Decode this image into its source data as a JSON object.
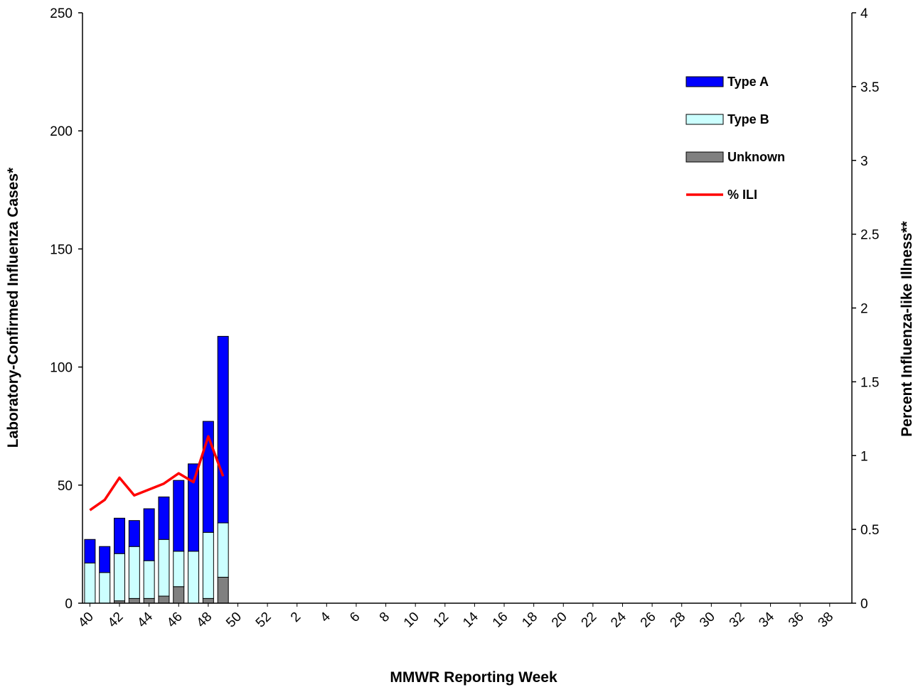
{
  "chart_data": {
    "type": "bar",
    "stacked": true,
    "xlabel": "MMWR Reporting Week",
    "ylabel": "Laboratory-Confirmed Influenza Cases*",
    "y2label": "Percent Influenza-like Illness**",
    "ylim": [
      0,
      250
    ],
    "y2lim": [
      0,
      4
    ],
    "yticks": [
      "0",
      "50",
      "100",
      "150",
      "200",
      "250"
    ],
    "y2ticks": [
      "0",
      "0.5",
      "1",
      "1.5",
      "2",
      "2.5",
      "3",
      "3.5",
      "4"
    ],
    "weeks": [
      "40",
      "41",
      "42",
      "43",
      "44",
      "45",
      "46",
      "47",
      "48",
      "49",
      "50",
      "51",
      "52",
      "1",
      "2",
      "3",
      "4",
      "5",
      "6",
      "7",
      "8",
      "9",
      "10",
      "11",
      "12",
      "13",
      "14",
      "15",
      "16",
      "17",
      "18",
      "19",
      "20",
      "21",
      "22",
      "23",
      "24",
      "25",
      "26",
      "27",
      "28",
      "29",
      "30",
      "31",
      "32",
      "33",
      "34",
      "35",
      "36",
      "37",
      "38",
      "39"
    ],
    "xtick_labels": [
      "40",
      "42",
      "44",
      "46",
      "48",
      "50",
      "52",
      "2",
      "4",
      "6",
      "8",
      "10",
      "12",
      "14",
      "16",
      "18",
      "20",
      "22",
      "24",
      "26",
      "28",
      "30",
      "32",
      "34",
      "36",
      "38"
    ],
    "series": [
      {
        "name": "Unknown",
        "color": "#808080",
        "values": [
          0,
          0,
          1,
          2,
          2,
          3,
          7,
          0,
          2,
          11
        ]
      },
      {
        "name": "Type B",
        "color": "#ccffff",
        "values": [
          17,
          13,
          20,
          22,
          16,
          24,
          15,
          22,
          28,
          23
        ]
      },
      {
        "name": "Type A",
        "color": "#0000ff",
        "values": [
          10,
          11,
          15,
          11,
          22,
          18,
          30,
          37,
          47,
          79
        ]
      }
    ],
    "line_series": {
      "name": "% ILI",
      "color": "#ff0000",
      "axis": "right",
      "values": [
        0.63,
        0.7,
        0.85,
        0.73,
        0.77,
        0.81,
        0.88,
        0.82,
        1.13,
        0.86
      ]
    },
    "legend": {
      "placement": "top-right",
      "entries": [
        {
          "label": "Type A",
          "kind": "bar",
          "color": "#0000ff"
        },
        {
          "label": "Type B",
          "kind": "bar",
          "color": "#ccffff"
        },
        {
          "label": "Unknown",
          "kind": "bar",
          "color": "#808080"
        },
        {
          "label": "% ILI",
          "kind": "line",
          "color": "#ff0000"
        }
      ]
    },
    "grid": false
  }
}
